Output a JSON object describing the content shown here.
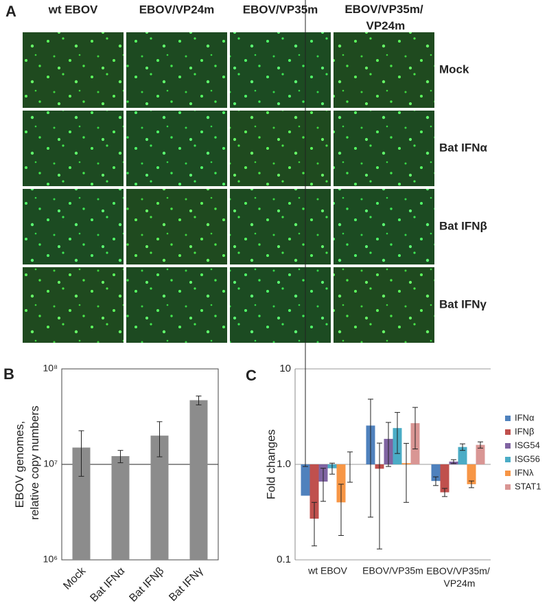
{
  "panel_a": {
    "label": "A",
    "columns": [
      "wt EBOV",
      "EBOV/VP24m",
      "EBOV/VP35m",
      "EBOV/VP35m/\nVP24m"
    ],
    "rows": [
      "Mock",
      "Bat IFNα",
      "Bat IFNβ",
      "Bat IFNγ"
    ]
  },
  "chart_data": [
    {
      "type": "bar",
      "panel_label": "B",
      "y_label": "EBOV genomes,\nrelative copy numbers",
      "categories": [
        "Mock",
        "Bat IFNα",
        "Bat IFNβ",
        "Bat IFNγ"
      ],
      "values": [
        15000000,
        12200000,
        20000000,
        47000000
      ],
      "errors": [
        7500000,
        1800000,
        8000000,
        5000000
      ],
      "color": "#8c8c8c",
      "log_scale": true,
      "grid": true,
      "ylim": [
        1000000,
        100000000
      ],
      "yticks": [
        {
          "value": 1000000,
          "label": "10⁶"
        },
        {
          "value": 10000000,
          "label": "10⁷"
        },
        {
          "value": 100000000,
          "label": "10⁸"
        }
      ]
    },
    {
      "type": "grouped_bar",
      "panel_label": "C",
      "y_label": "Fold changes",
      "categories": [
        "wt EBOV",
        "EBOV/VP35m",
        "EBOV/VP35m/\nVP24m"
      ],
      "series": [
        {
          "name": "IFNα",
          "color": "#4f81bd",
          "values": [
            0.47,
            2.55,
            0.67
          ],
          "errors": [
            0.48,
            2.27,
            0.07
          ]
        },
        {
          "name": "IFNβ",
          "color": "#c0504d",
          "values": [
            0.27,
            0.9,
            0.51
          ],
          "errors": [
            0.13,
            0.77,
            0.05
          ]
        },
        {
          "name": "ISG54",
          "color": "#8064a2",
          "values": [
            0.66,
            1.85,
            1.07
          ],
          "errors": [
            0.25,
            0.9,
            0.05
          ]
        },
        {
          "name": "ISG56",
          "color": "#4bacc6",
          "values": [
            0.91,
            2.4,
            1.52
          ],
          "errors": [
            0.12,
            1.1,
            0.12
          ]
        },
        {
          "name": "IFNλ",
          "color": "#f79646",
          "values": [
            0.4,
            1.03,
            0.62
          ],
          "errors": [
            0.22,
            0.63,
            0.05
          ]
        },
        {
          "name": "STAT1",
          "color": "#d99694",
          "values": [
            1.0,
            2.7,
            1.6
          ],
          "errors": [
            0.35,
            1.25,
            0.12
          ]
        }
      ],
      "log_scale": true,
      "grid": true,
      "legend": "right",
      "ylim": [
        0.1,
        10
      ],
      "yticks": [
        0.1,
        {
          "value": 1,
          "label": "1.0"
        },
        10
      ]
    }
  ]
}
